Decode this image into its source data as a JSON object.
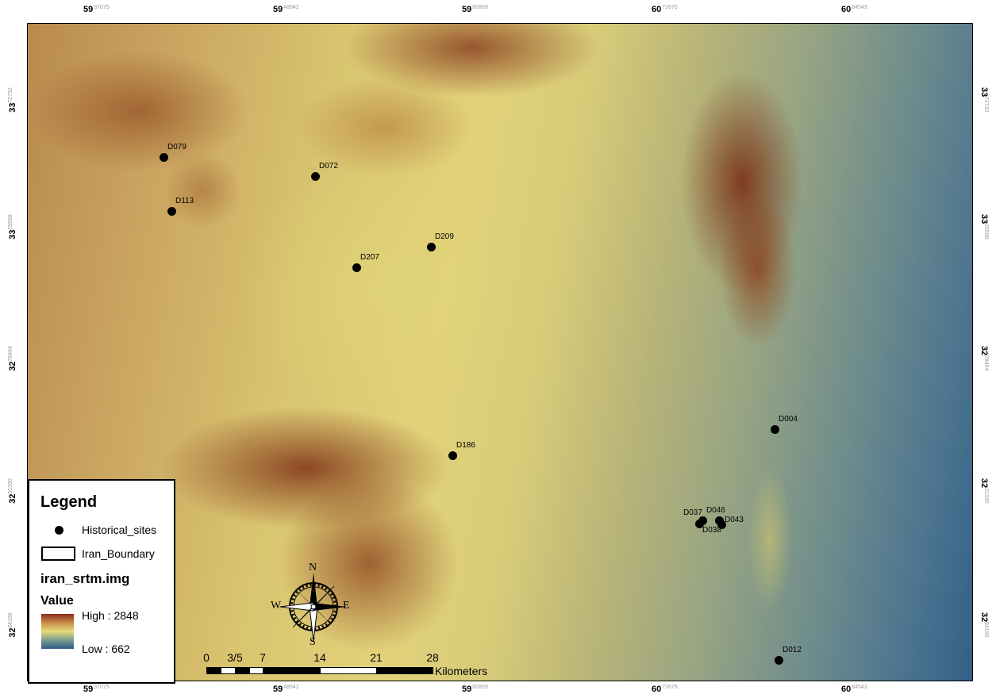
{
  "map": {
    "raster_layer": "iran_srtm.img"
  },
  "graticule": {
    "top": [
      {
        "label": "59",
        "sup": "37075"
      },
      {
        "label": "59",
        "sup": "48942"
      },
      {
        "label": "59",
        "sup": "60809"
      },
      {
        "label": "60",
        "sup": "72676"
      },
      {
        "label": "60",
        "sup": "84543"
      }
    ],
    "bottom": [
      {
        "label": "59",
        "sup": "37075"
      },
      {
        "label": "59",
        "sup": "48942"
      },
      {
        "label": "59",
        "sup": "60809"
      },
      {
        "label": "60",
        "sup": "72676"
      },
      {
        "label": "60",
        "sup": "84543"
      }
    ],
    "left": [
      {
        "label": "33",
        "sup": "72732"
      },
      {
        "label": "33",
        "sup": "25598"
      },
      {
        "label": "32",
        "sup": "78464"
      },
      {
        "label": "32",
        "sup": "31330"
      },
      {
        "label": "32",
        "sup": "84196"
      }
    ],
    "right": [
      {
        "label": "33",
        "sup": "72732"
      },
      {
        "label": "33",
        "sup": "25598"
      },
      {
        "label": "32",
        "sup": "78464"
      },
      {
        "label": "32",
        "sup": "31330"
      },
      {
        "label": "32",
        "sup": "84196"
      }
    ]
  },
  "sites": [
    {
      "id": "D079"
    },
    {
      "id": "D072"
    },
    {
      "id": "D113"
    },
    {
      "id": "D209"
    },
    {
      "id": "D207"
    },
    {
      "id": "D004"
    },
    {
      "id": "D186"
    },
    {
      "id": "D046"
    },
    {
      "id": "D037"
    },
    {
      "id": "D043"
    },
    {
      "id": "D038"
    },
    {
      "id": "D012"
    }
  ],
  "legend": {
    "title": "Legend",
    "sites_label": "Historical_sites",
    "boundary_label": "Iran_Boundary",
    "raster_label": "iran_srtm.img",
    "value_label": "Value",
    "high_label": "High : 2848",
    "low_label": "Low : 662",
    "ramp_colors": [
      "#8a2b1a",
      "#c98a48",
      "#e6dd7a",
      "#7a9c8f",
      "#2f5a86"
    ]
  },
  "compass": {
    "n": "N",
    "s": "S",
    "e": "E",
    "w": "W"
  },
  "scale_bar": {
    "ticks": [
      "0",
      "3/5",
      "7",
      "14",
      "21",
      "28"
    ],
    "units": "Kilometers"
  }
}
